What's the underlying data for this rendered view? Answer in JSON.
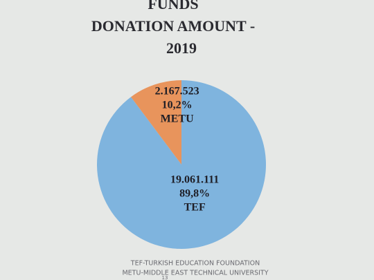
{
  "chart_data": {
    "type": "pie",
    "title": [
      "FUNDS",
      "DONATION AMOUNT -",
      "2019"
    ],
    "categories": [
      "TEF",
      "METU"
    ],
    "values": [
      89.8,
      10.2
    ],
    "value_labels": [
      "89,8%",
      "10,2%"
    ],
    "amounts": [
      19061111,
      2167523
    ],
    "amount_labels": [
      "19.061.111",
      "2.167.523"
    ],
    "colors": [
      "#7fb4de",
      "#e8945c"
    ],
    "notes": [
      "TEF-TURKISH EDUCATION FOUNDATION",
      "METU-MIDDLE EAST TECHNICAL UNIVERSITY"
    ],
    "page_number": "13"
  }
}
